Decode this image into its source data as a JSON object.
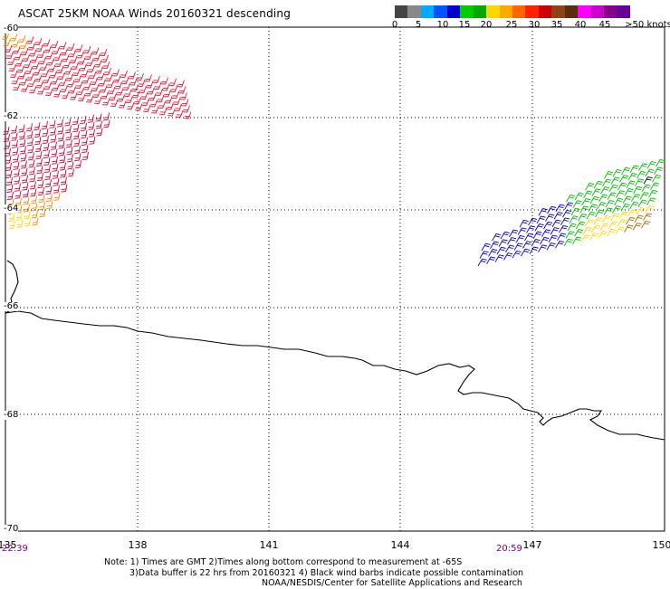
{
  "title": "ASCAT 25KM NOAA Winds 20160321 descending",
  "colorbar": {
    "colors": [
      "#444444",
      "#888888",
      "#00aaff",
      "#0055ff",
      "#0000cc",
      "#00cc00",
      "#00aa00",
      "#ffd700",
      "#ffaa00",
      "#ff6600",
      "#ff2200",
      "#cc0000",
      "#8b4513",
      "#5a2d0c",
      "#ff00ff",
      "#cc00cc",
      "#880088",
      "#660099"
    ],
    "labels": [
      "0",
      "5",
      "10",
      "15",
      "20",
      "25",
      "30",
      "35",
      "40",
      "45",
      ">50 knots"
    ]
  },
  "map": {
    "lat_labels": [
      "-60",
      "-62",
      "-64",
      "-66",
      "-68",
      "-70"
    ],
    "lon_labels": [
      "135",
      "138",
      "141",
      "144",
      "147",
      "150"
    ],
    "times": [
      "22:39",
      "20:59"
    ]
  },
  "note": {
    "line1": "Note: 1) Times are GMT 2)Times along bottom correspond to measurement at -65S",
    "line2": "3)Data buffer is 22 hrs from 20160321 4) Black wind barbs indicate possible contamination",
    "line3": "NOAA/NESDIS/Center for Satellite Applications and Research"
  },
  "wind_colors": {
    "blue": "#0000cc",
    "green": "#00bb00",
    "yellow": "#ffd700",
    "orange": "#ff8800",
    "red": "#ee1133",
    "dark_red": "#cc0033",
    "brown": "#aa6600",
    "black": "#000000"
  }
}
